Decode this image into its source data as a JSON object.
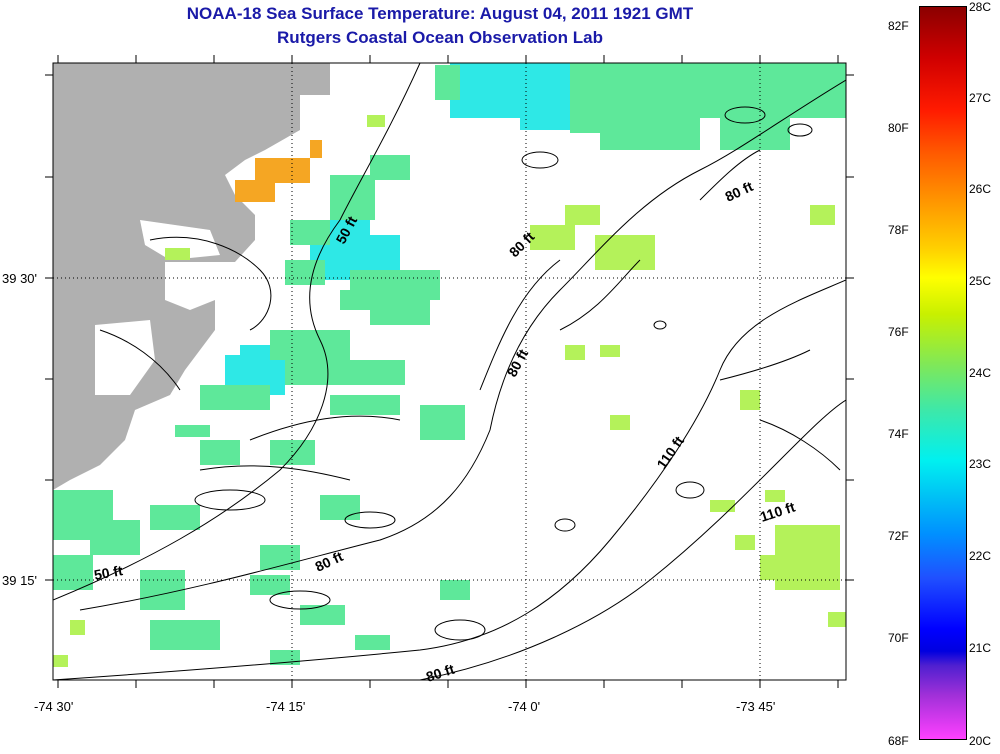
{
  "header": {
    "title": "NOAA-18 Sea Surface Temperature:  August 04, 2011 1921 GMT",
    "subtitle": "Rutgers Coastal Ocean Observation Lab"
  },
  "map": {
    "y_ticks": [
      {
        "label": "39 30'",
        "lat": 39.5
      },
      {
        "label": "39 15'",
        "lat": 39.25
      }
    ],
    "x_ticks": [
      {
        "label": "-74 30'",
        "lon": -74.5
      },
      {
        "label": "-74 15'",
        "lon": -74.25
      },
      {
        "label": "-74 0'",
        "lon": -74.0
      },
      {
        "label": "-73 45'",
        "lon": -73.75
      }
    ],
    "contour_labels": [
      "50 ft",
      "80 ft",
      "80 ft",
      "80 ft",
      "110 ft",
      "110 ft",
      "50 ft",
      "80 ft",
      "80 ft"
    ]
  },
  "colorbar": {
    "f_labels": [
      "82F",
      "80F",
      "78F",
      "76F",
      "74F",
      "72F",
      "70F",
      "68F"
    ],
    "c_labels": [
      "28C",
      "27C",
      "26C",
      "25C",
      "24C",
      "23C",
      "22C",
      "21C",
      "20C"
    ]
  },
  "colors": {
    "title": "#1a1aa8",
    "land": "#b0b0b0",
    "sst_cyan": "#2ee8e6",
    "sst_green": "#5ee89a",
    "sst_yellow_green": "#b4f25a",
    "sst_orange": "#f5a623"
  }
}
